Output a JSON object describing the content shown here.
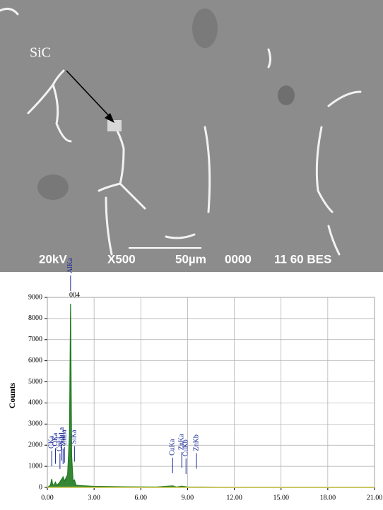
{
  "micrograph": {
    "label": "SiC",
    "info": [
      "20kV",
      "X500",
      "50µm",
      "0000",
      "11 60 BES"
    ]
  },
  "chart_data": {
    "type": "spectrum",
    "title": "004",
    "ylabel": "Counts",
    "xlim": [
      0,
      21
    ],
    "ylim": [
      0,
      9000
    ],
    "xticks": [
      {
        "value": 0,
        "label": "0.00"
      },
      {
        "value": 3,
        "label": "3.00"
      },
      {
        "value": 6,
        "label": "6.00"
      },
      {
        "value": 9,
        "label": "9.00"
      },
      {
        "value": 12,
        "label": "12.00"
      },
      {
        "value": 15,
        "label": "15.00"
      },
      {
        "value": 18,
        "label": "18.00"
      },
      {
        "value": 21,
        "label": "21.00"
      }
    ],
    "yticks": [
      0,
      1000,
      2000,
      3000,
      4000,
      5000,
      6000,
      7000,
      8000,
      9000
    ],
    "grid": true,
    "series": [
      {
        "color": "#1f7a1f",
        "x": [
          0,
          0.2,
          0.28,
          0.35,
          0.45,
          0.52,
          0.6,
          0.75,
          0.93,
          1.01,
          1.1,
          1.3,
          1.42,
          1.49,
          1.56,
          1.65,
          1.74,
          1.85,
          2.2,
          3,
          5,
          7,
          8.04,
          8.3,
          8.63,
          9,
          12,
          15,
          18,
          21
        ],
        "values": [
          0,
          100,
          400,
          100,
          150,
          250,
          100,
          200,
          400,
          500,
          300,
          600,
          2500,
          8700,
          1500,
          300,
          350,
          100,
          80,
          50,
          30,
          20,
          70,
          20,
          60,
          20,
          10,
          5,
          3,
          0
        ]
      }
    ],
    "annotation_color": "#1a2a9a",
    "annotations": [
      {
        "text": "CKa",
        "x": 0.28
      },
      {
        "text": "OKa",
        "x": 0.52
      },
      {
        "text": "CuLl",
        "x": 0.81
      },
      {
        "text": "CuLa",
        "x": 0.93
      },
      {
        "text": "ZnLl",
        "x": 1.01
      },
      {
        "text": "ZnLa",
        "x": 1.1
      },
      {
        "text": "AlKa",
        "x": 1.49
      },
      {
        "text": "SiKa",
        "x": 1.74
      },
      {
        "text": "CuKa",
        "x": 8.04
      },
      {
        "text": "ZnKa",
        "x": 8.63
      },
      {
        "text": "CuKb",
        "x": 8.9
      },
      {
        "text": "ZnKb",
        "x": 9.57
      }
    ]
  }
}
